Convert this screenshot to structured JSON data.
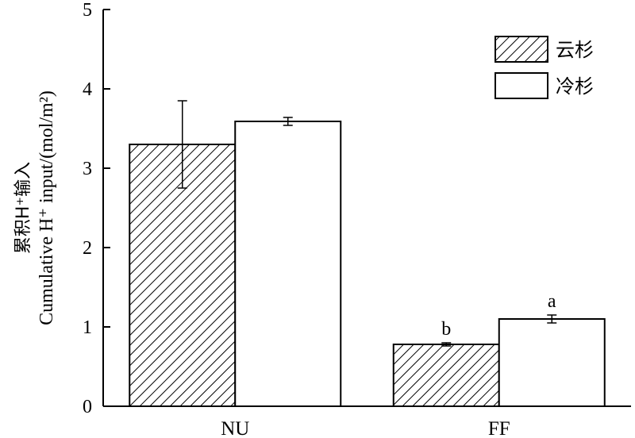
{
  "chart_data": {
    "type": "bar",
    "categories": [
      "NU",
      "FF"
    ],
    "series": [
      {
        "name": "云杉",
        "pattern": "hatch",
        "values": [
          3.3,
          0.78
        ],
        "errors": [
          0.55,
          0.02
        ],
        "sig_labels": [
          "",
          "b"
        ]
      },
      {
        "name": "冷杉",
        "pattern": "white",
        "values": [
          3.59,
          1.1
        ],
        "errors": [
          0.05,
          0.05
        ],
        "sig_labels": [
          "",
          "a"
        ]
      }
    ],
    "ylim": [
      0,
      5
    ],
    "yticks": [
      "0",
      "1",
      "2",
      "3",
      "4",
      "5"
    ],
    "ylabel_cn": "累积H⁺输入",
    "ylabel_en": "Cumulative H⁺ input/(mol/m²)",
    "legend_position": "top-right",
    "grid": false
  }
}
